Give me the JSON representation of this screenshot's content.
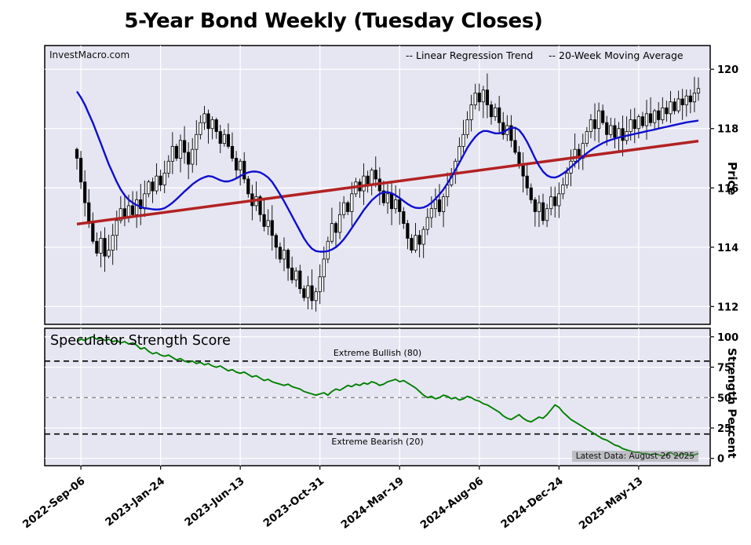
{
  "title": "5-Year Bond Weekly (Tuesday Closes)",
  "watermark": "InvestMacro.com",
  "legend": {
    "regression_label": "-- Linear Regression Trend",
    "ma_label": "-- 20-Week Moving Average"
  },
  "colors": {
    "regression": "#b22222",
    "ma": "#0f0fd0",
    "strength": "#008000",
    "panel_bg": "#e6e6f2",
    "grid": "#ffffff",
    "candle_up": "#ffffff",
    "candle_down": "#000000",
    "threshold": "#000000",
    "midline": "#888888"
  },
  "strength_panel": {
    "title": "Speculator Strength Score",
    "bullish_label": "Extreme Bullish (80)",
    "bearish_label": "Extreme Bearish (20)",
    "latest_note": "Latest Data: August 26 2025"
  },
  "chart_data": {
    "type": "candlestick",
    "title": "5-Year Bond Weekly (Tuesday Closes)",
    "weeks_total": 157,
    "x_tick_labels": [
      "2022-Sep-06",
      "2023-Jan-24",
      "2023-Jun-13",
      "2023-Oct-31",
      "2024-Mar-19",
      "2024-Aug-06",
      "2024-Dec-24",
      "2025-May-13"
    ],
    "x_tick_weeks": [
      1,
      21,
      41,
      61,
      81,
      101,
      121,
      141
    ],
    "price": {
      "axis_title": "Price",
      "ylim": [
        111.4,
        120.8
      ],
      "ticks": [
        112,
        114,
        116,
        118,
        120
      ],
      "closes": [
        117.0,
        116.2,
        115.5,
        114.8,
        114.2,
        113.8,
        114.3,
        113.7,
        113.9,
        114.4,
        114.9,
        115.3,
        115.0,
        115.4,
        115.1,
        115.6,
        115.3,
        115.8,
        116.2,
        115.9,
        116.4,
        116.1,
        116.5,
        116.9,
        117.4,
        117.0,
        117.6,
        117.2,
        116.8,
        117.3,
        117.8,
        118.2,
        118.5,
        118.0,
        118.3,
        117.9,
        117.5,
        117.8,
        117.4,
        117.0,
        116.6,
        116.9,
        116.3,
        115.8,
        115.4,
        115.7,
        115.1,
        114.7,
        114.9,
        114.4,
        114.0,
        113.6,
        113.9,
        113.3,
        112.9,
        113.2,
        112.6,
        112.3,
        112.7,
        112.2,
        112.5,
        113.0,
        113.6,
        114.2,
        114.8,
        114.5,
        115.1,
        115.5,
        115.2,
        115.8,
        116.2,
        115.9,
        116.4,
        116.1,
        116.6,
        116.3,
        115.9,
        115.5,
        115.8,
        115.3,
        115.6,
        115.2,
        114.8,
        114.3,
        113.9,
        114.4,
        114.1,
        114.6,
        115.0,
        115.3,
        115.6,
        115.2,
        115.7,
        116.1,
        116.5,
        116.9,
        117.4,
        117.8,
        118.3,
        118.8,
        119.2,
        118.9,
        119.3,
        118.8,
        118.4,
        118.7,
        118.2,
        117.8,
        118.1,
        117.6,
        117.2,
        116.8,
        116.4,
        116.0,
        115.6,
        115.2,
        115.5,
        114.9,
        115.3,
        115.7,
        115.4,
        115.8,
        116.1,
        116.5,
        116.9,
        117.3,
        117.0,
        117.5,
        117.9,
        118.3,
        118.0,
        118.6,
        118.2,
        117.8,
        118.1,
        117.7,
        118.0,
        117.6,
        117.9,
        118.3,
        118.0,
        118.4,
        118.1,
        118.5,
        118.2,
        118.6,
        118.3,
        118.7,
        118.5,
        118.9,
        118.6,
        119.0,
        118.8,
        119.1,
        118.9,
        119.2,
        119.35
      ],
      "ma20": [
        119.25,
        119.05,
        118.8,
        118.5,
        118.2,
        117.85,
        117.5,
        117.15,
        116.8,
        116.5,
        116.2,
        115.95,
        115.75,
        115.6,
        115.5,
        115.42,
        115.36,
        115.32,
        115.3,
        115.28,
        115.27,
        115.28,
        115.32,
        115.4,
        115.5,
        115.62,
        115.75,
        115.88,
        116.0,
        116.12,
        116.22,
        116.3,
        116.36,
        116.4,
        116.38,
        116.32,
        116.26,
        116.22,
        116.22,
        116.26,
        116.32,
        116.4,
        116.47,
        116.52,
        116.55,
        116.55,
        116.52,
        116.45,
        116.35,
        116.2,
        116.0,
        115.78,
        115.55,
        115.3,
        115.05,
        114.8,
        114.55,
        114.3,
        114.1,
        113.95,
        113.87,
        113.85,
        113.85,
        113.87,
        113.92,
        114.0,
        114.12,
        114.27,
        114.45,
        114.65,
        114.85,
        115.05,
        115.25,
        115.42,
        115.58,
        115.7,
        115.8,
        115.85,
        115.86,
        115.82,
        115.75,
        115.66,
        115.56,
        115.46,
        115.38,
        115.33,
        115.32,
        115.34,
        115.4,
        115.5,
        115.63,
        115.78,
        115.95,
        116.15,
        116.37,
        116.6,
        116.85,
        117.1,
        117.35,
        117.55,
        117.72,
        117.85,
        117.92,
        117.92,
        117.88,
        117.84,
        117.84,
        117.88,
        117.96,
        118.02,
        118.03,
        117.95,
        117.78,
        117.55,
        117.28,
        117.0,
        116.75,
        116.55,
        116.42,
        116.36,
        116.35,
        116.4,
        116.48,
        116.58,
        116.7,
        116.82,
        116.94,
        117.06,
        117.17,
        117.27,
        117.36,
        117.44,
        117.51,
        117.57,
        117.62,
        117.66,
        117.7,
        117.73,
        117.76,
        117.79,
        117.82,
        117.85,
        117.88,
        117.91,
        117.94,
        117.97,
        118.0,
        118.03,
        118.06,
        118.09,
        118.12,
        118.15,
        118.18,
        118.21,
        118.23,
        118.25,
        118.27
      ],
      "regression_trend": {
        "start_value": 114.78,
        "end_value": 117.58
      }
    },
    "strength": {
      "axis_title": "Strength Percent",
      "ylim": [
        -6,
        107
      ],
      "ticks": [
        0,
        25,
        50,
        75,
        100
      ],
      "extreme_bullish": 80,
      "extreme_bearish": 20,
      "midline": 50,
      "values": [
        96,
        98,
        97,
        99,
        100,
        98,
        99,
        97,
        98,
        96,
        97,
        95,
        96,
        94,
        95,
        93,
        90,
        91,
        88,
        86,
        87,
        85,
        84,
        85,
        83,
        81,
        82,
        80,
        79,
        80,
        78,
        79,
        77,
        78,
        76,
        75,
        76,
        74,
        72,
        73,
        71,
        70,
        71,
        69,
        67,
        68,
        66,
        64,
        65,
        63,
        62,
        61,
        60,
        61,
        59,
        58,
        57,
        55,
        54,
        53,
        52,
        53,
        54,
        52,
        55,
        57,
        56,
        58,
        60,
        59,
        61,
        60,
        62,
        61,
        63,
        62,
        60,
        61,
        63,
        64,
        65,
        63,
        64,
        62,
        60,
        58,
        55,
        52,
        50,
        51,
        49,
        50,
        52,
        51,
        49,
        50,
        48,
        49,
        51,
        50,
        48,
        47,
        45,
        44,
        42,
        40,
        38,
        35,
        33,
        32,
        34,
        36,
        33,
        31,
        30,
        32,
        34,
        33,
        36,
        40,
        44,
        42,
        38,
        35,
        32,
        30,
        28,
        26,
        24,
        22,
        20,
        18,
        16,
        15,
        13,
        11,
        10,
        8,
        7,
        6,
        5,
        5,
        4,
        4,
        3,
        4,
        3,
        2,
        3,
        5,
        3,
        2,
        4,
        3,
        2,
        3,
        4
      ]
    }
  }
}
